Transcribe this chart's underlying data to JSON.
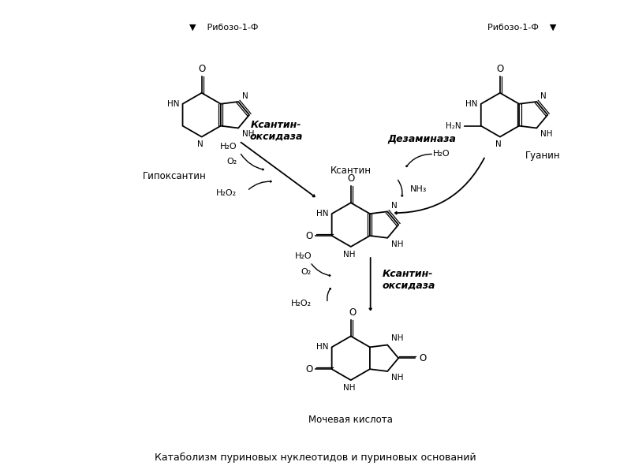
{
  "title": "Катаболизм пуриновых нуклеотидов и пуриновых оснований",
  "background_color": "#ffffff",
  "top_label_left": "▼    Рибозо-1-Ф",
  "top_label_right": "Рибозо-1-Ф    ▼",
  "label_hypoxanthine": "Гипоксантин",
  "label_guanine": "Гуанин",
  "label_xanthine": "Ксантин",
  "label_uric_acid": "Мочевая кислота",
  "enzyme1_line1": "Ксантин-",
  "enzyme1_line2": "оксидаза",
  "enzyme2": "Дезаминаза",
  "enzyme3_line1": "Ксантин-",
  "enzyme3_line2": "оксидаза",
  "text_color": "#000000"
}
